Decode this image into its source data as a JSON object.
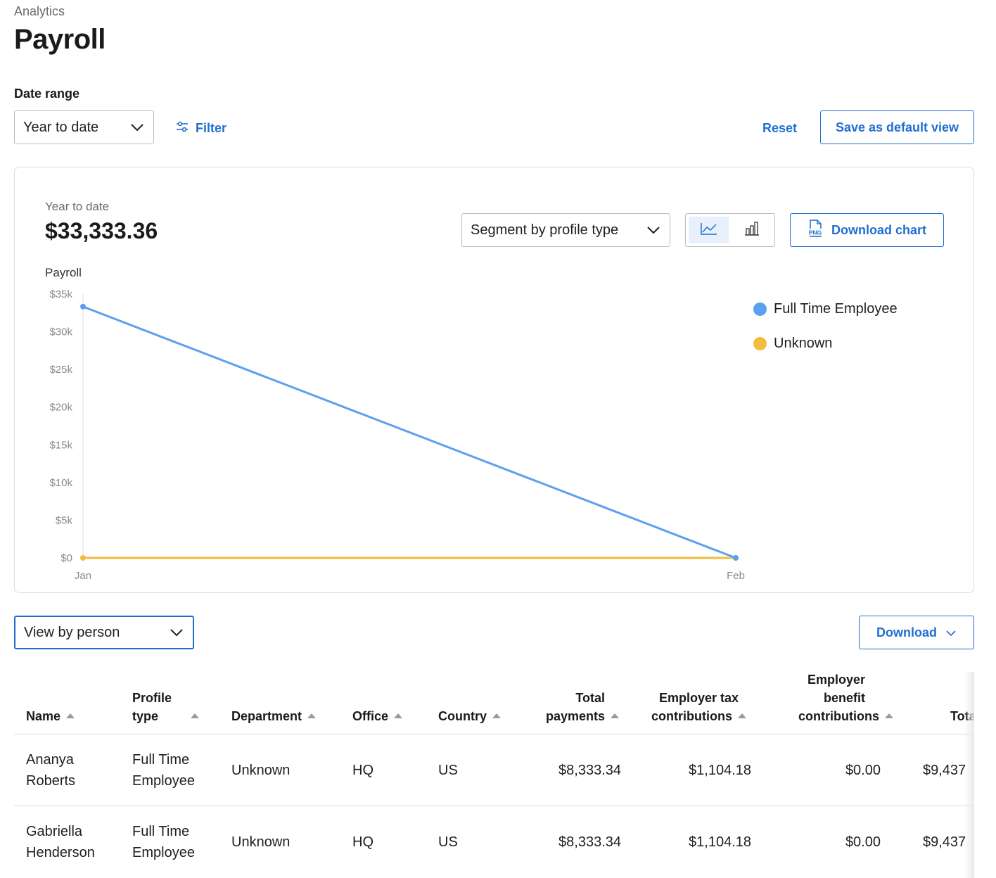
{
  "header": {
    "breadcrumb": "Analytics",
    "title": "Payroll"
  },
  "filters": {
    "date_range_label": "Date range",
    "date_range_value": "Year to date",
    "filter_label": "Filter",
    "reset_label": "Reset",
    "save_default_label": "Save as default view"
  },
  "chart_card": {
    "period_label": "Year to date",
    "total_value": "$33,333.36",
    "segment_select_value": "Segment by profile type",
    "download_chart_label": "Download chart",
    "png_badge": "PNG",
    "active_view": "line"
  },
  "chart_data": {
    "type": "line",
    "ylabel": "Payroll",
    "categories": [
      "Jan",
      "Feb"
    ],
    "y_ticks": [
      "$0",
      "$5k",
      "$10k",
      "$15k",
      "$20k",
      "$25k",
      "$30k",
      "$35k"
    ],
    "ylim": [
      0,
      35000
    ],
    "grid": false,
    "legend_position": "right",
    "series": [
      {
        "name": "Full Time Employee",
        "color": "#5aa0f0",
        "values": [
          33333.36,
          0
        ]
      },
      {
        "name": "Unknown",
        "color": "#f2be3c",
        "values": [
          0,
          0
        ]
      }
    ]
  },
  "table_controls": {
    "view_select_value": "View by person",
    "download_label": "Download"
  },
  "table": {
    "headers": {
      "name": "Name",
      "profile_type_1": "Profile",
      "profile_type_2": "type",
      "department": "Department",
      "office": "Office",
      "country": "Country",
      "total_payments_1": "Total",
      "total_payments_2": "payments",
      "employer_tax_1": "Employer tax",
      "employer_tax_2": "contributions",
      "employer_benefit_1": "Employer",
      "employer_benefit_2": "benefit",
      "employer_benefit_3": "contributions",
      "total_cut": "Tota"
    },
    "rows": [
      {
        "name_1": "Ananya",
        "name_2": "Roberts",
        "profile_1": "Full Time",
        "profile_2": "Employee",
        "department": "Unknown",
        "office": "HQ",
        "country": "US",
        "total_payments": "$8,333.34",
        "employer_tax": "$1,104.18",
        "employer_benefit": "$0.00",
        "total": "$9,437"
      },
      {
        "name_1": "Gabriella",
        "name_2": "Henderson",
        "profile_1": "Full Time",
        "profile_2": "Employee",
        "department": "Unknown",
        "office": "HQ",
        "country": "US",
        "total_payments": "$8,333.34",
        "employer_tax": "$1,104.18",
        "employer_benefit": "$0.00",
        "total": "$9,437"
      }
    ]
  }
}
